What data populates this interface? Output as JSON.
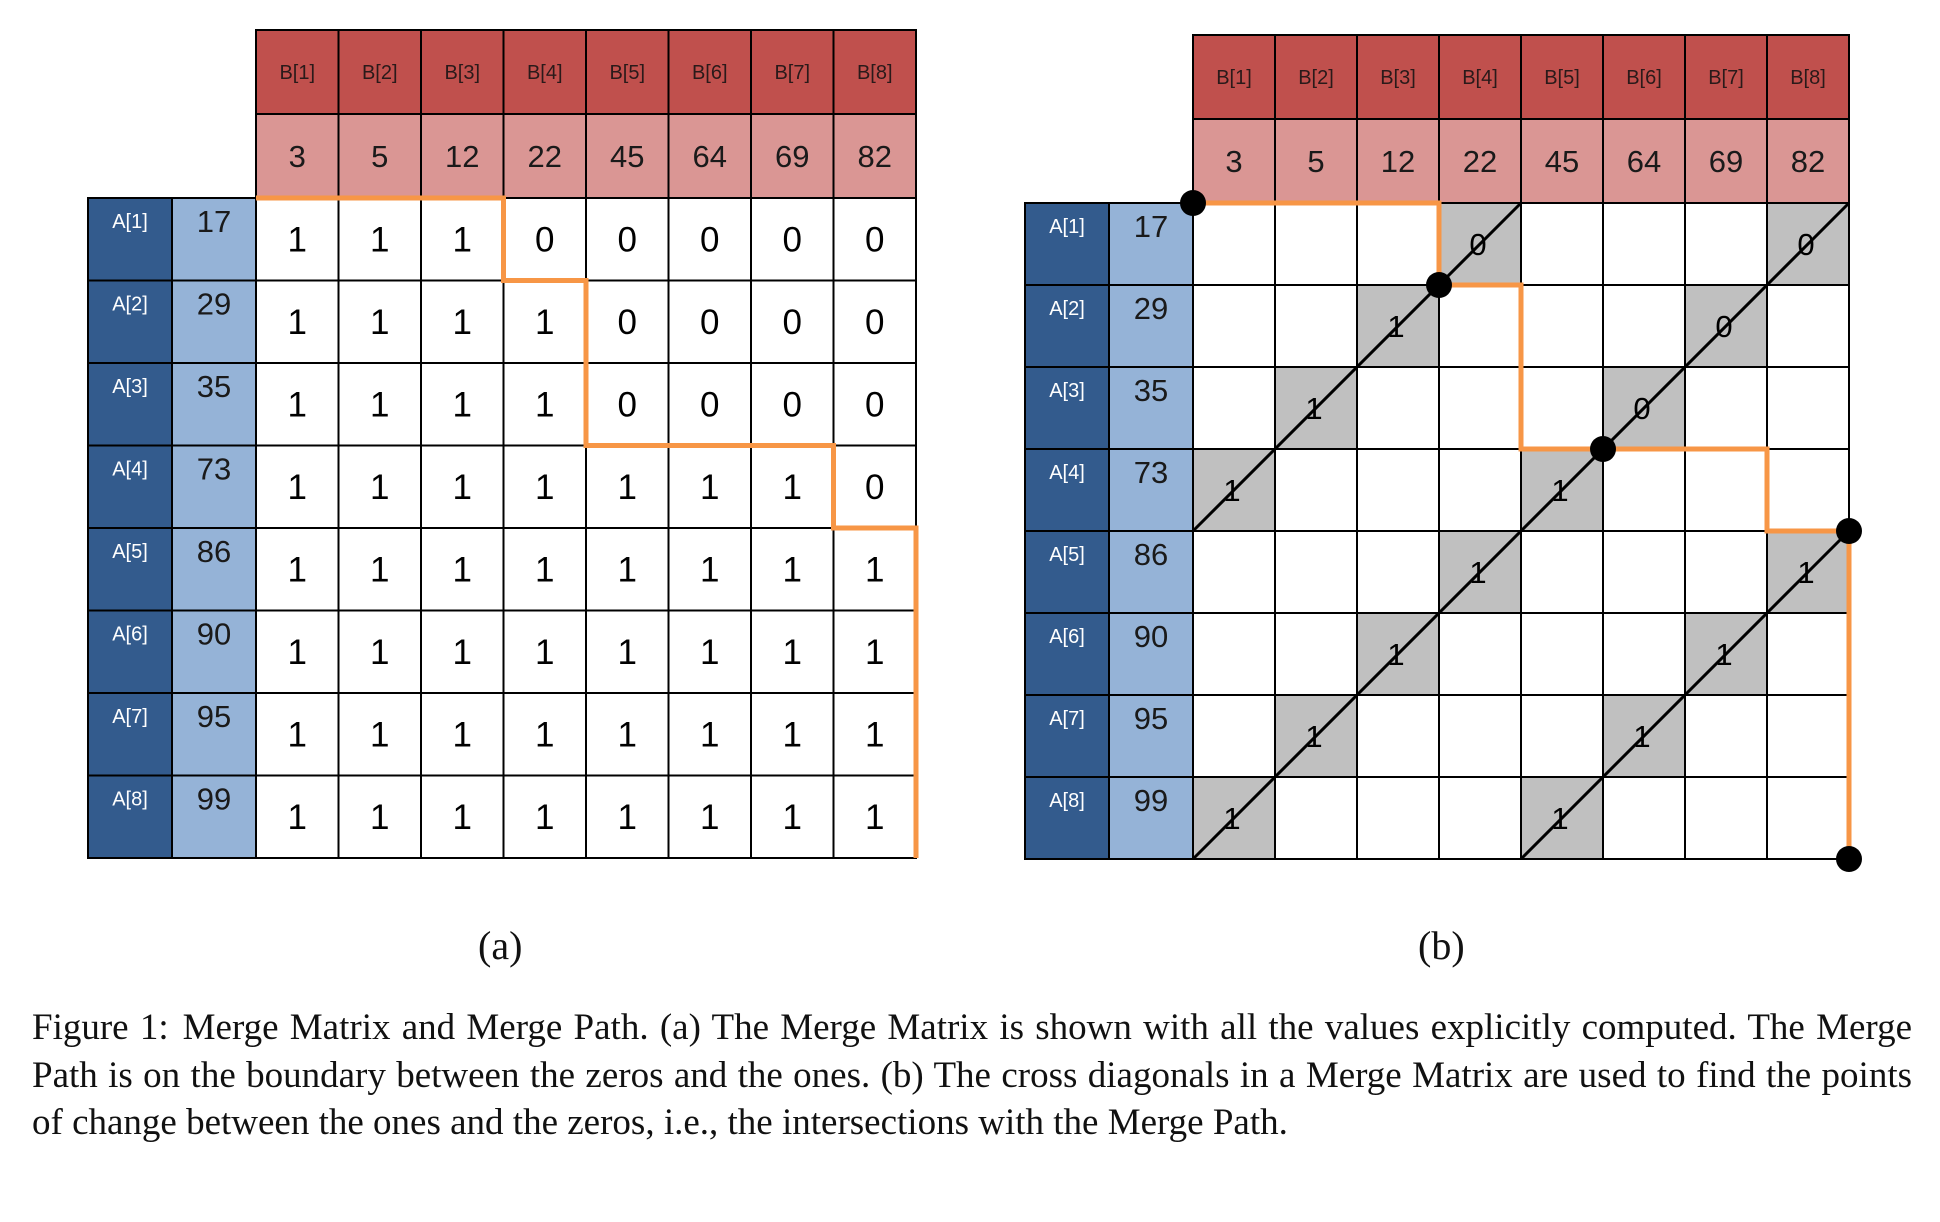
{
  "colors": {
    "header_dark": "#c0504d",
    "header_light": "#da9694",
    "a_dark": "#335b8d",
    "a_light": "#95b3d7",
    "path": "#f79646",
    "diag_cell": "#c0c0c0",
    "grid": "#000000"
  },
  "b_labels": [
    "B[1]",
    "B[2]",
    "B[3]",
    "B[4]",
    "B[5]",
    "B[6]",
    "B[7]",
    "B[8]"
  ],
  "b_values": [
    "3",
    "5",
    "12",
    "22",
    "45",
    "64",
    "69",
    "82"
  ],
  "a_labels": [
    "A[1]",
    "A[2]",
    "A[3]",
    "A[4]",
    "A[5]",
    "A[6]",
    "A[7]",
    "A[8]"
  ],
  "a_values": [
    "17",
    "29",
    "35",
    "73",
    "86",
    "90",
    "95",
    "99"
  ],
  "matrix_a": [
    [
      "1",
      "1",
      "1",
      "0",
      "0",
      "0",
      "0",
      "0"
    ],
    [
      "1",
      "1",
      "1",
      "1",
      "0",
      "0",
      "0",
      "0"
    ],
    [
      "1",
      "1",
      "1",
      "1",
      "0",
      "0",
      "0",
      "0"
    ],
    [
      "1",
      "1",
      "1",
      "1",
      "1",
      "1",
      "1",
      "0"
    ],
    [
      "1",
      "1",
      "1",
      "1",
      "1",
      "1",
      "1",
      "1"
    ],
    [
      "1",
      "1",
      "1",
      "1",
      "1",
      "1",
      "1",
      "1"
    ],
    [
      "1",
      "1",
      "1",
      "1",
      "1",
      "1",
      "1",
      "1"
    ],
    [
      "1",
      "1",
      "1",
      "1",
      "1",
      "1",
      "1",
      "1"
    ]
  ],
  "diagonal_cells_b": [
    {
      "row": 1,
      "col": 4,
      "value": "0"
    },
    {
      "row": 2,
      "col": 3,
      "value": "1"
    },
    {
      "row": 3,
      "col": 2,
      "value": "1"
    },
    {
      "row": 4,
      "col": 1,
      "value": "1"
    },
    {
      "row": 1,
      "col": 8,
      "value": "0"
    },
    {
      "row": 2,
      "col": 7,
      "value": "0"
    },
    {
      "row": 3,
      "col": 6,
      "value": "0"
    },
    {
      "row": 4,
      "col": 5,
      "value": "1"
    },
    {
      "row": 5,
      "col": 4,
      "value": "1"
    },
    {
      "row": 6,
      "col": 3,
      "value": "1"
    },
    {
      "row": 7,
      "col": 2,
      "value": "1"
    },
    {
      "row": 8,
      "col": 1,
      "value": "1"
    },
    {
      "row": 5,
      "col": 8,
      "value": "1"
    },
    {
      "row": 6,
      "col": 7,
      "value": "1"
    },
    {
      "row": 7,
      "col": 6,
      "value": "1"
    },
    {
      "row": 8,
      "col": 5,
      "value": "1"
    }
  ],
  "sublabels": {
    "a": "(a)",
    "b": "(b)"
  },
  "caption": {
    "label": "Figure 1:",
    "text": "Merge Matrix and Merge Path. (a) The Merge Matrix is shown with all the values explicitly computed. The Merge Path is on the boundary between the zeros and the ones. (b) The cross diagonals in a Merge Matrix are used to find the points of change between the ones and the zeros, i.e., the intersections with the Merge Path."
  }
}
